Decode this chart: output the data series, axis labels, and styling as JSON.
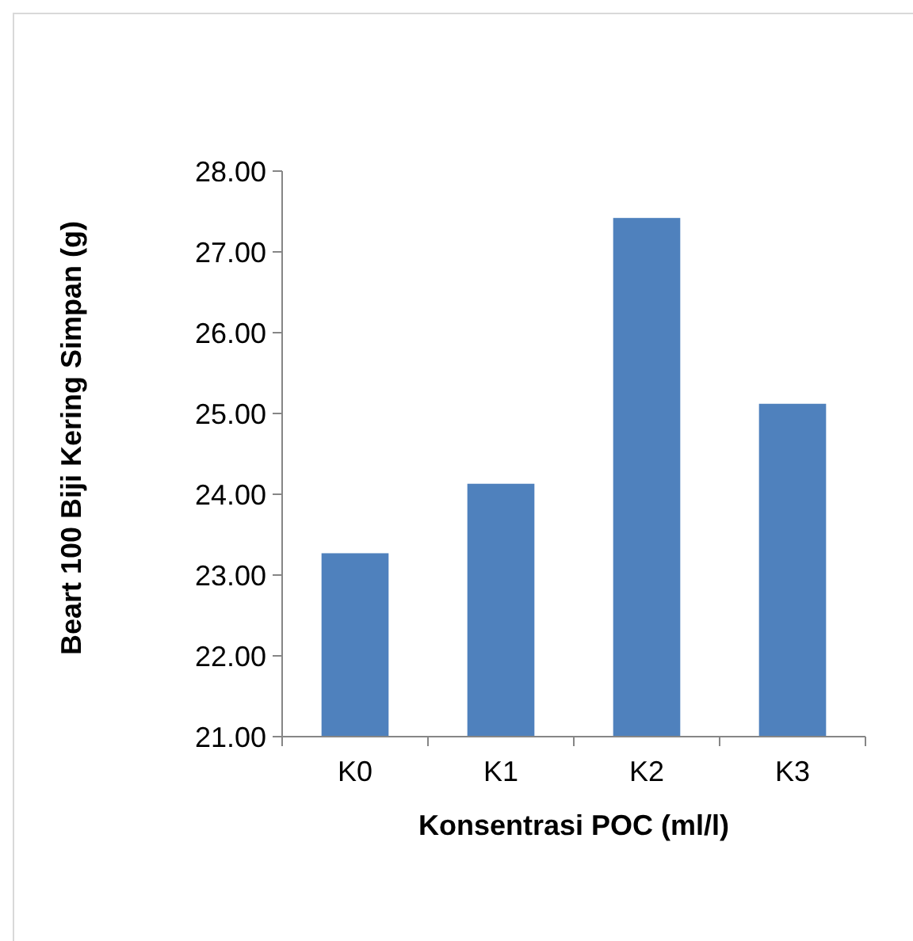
{
  "chart_data": {
    "type": "bar",
    "xlabel": "Konsentrasi POC (ml/l)",
    "ylabel": "Beart 100 Biji Kering Simpan (g)",
    "categories": [
      "K0",
      "K1",
      "K2",
      "K3"
    ],
    "values": [
      23.27,
      24.13,
      27.42,
      25.12
    ],
    "color": "#4f81bd",
    "ylim": [
      21,
      28
    ],
    "yticks": [
      {
        "value": 21,
        "label": "21.00"
      },
      {
        "value": 22,
        "label": "22.00"
      },
      {
        "value": 23,
        "label": "23.00"
      },
      {
        "value": 24,
        "label": "24.00"
      },
      {
        "value": 25,
        "label": "25.00"
      },
      {
        "value": 26,
        "label": "26.00"
      },
      {
        "value": 27,
        "label": "27.00"
      },
      {
        "value": 28,
        "label": "28.00"
      }
    ],
    "grid": false
  }
}
